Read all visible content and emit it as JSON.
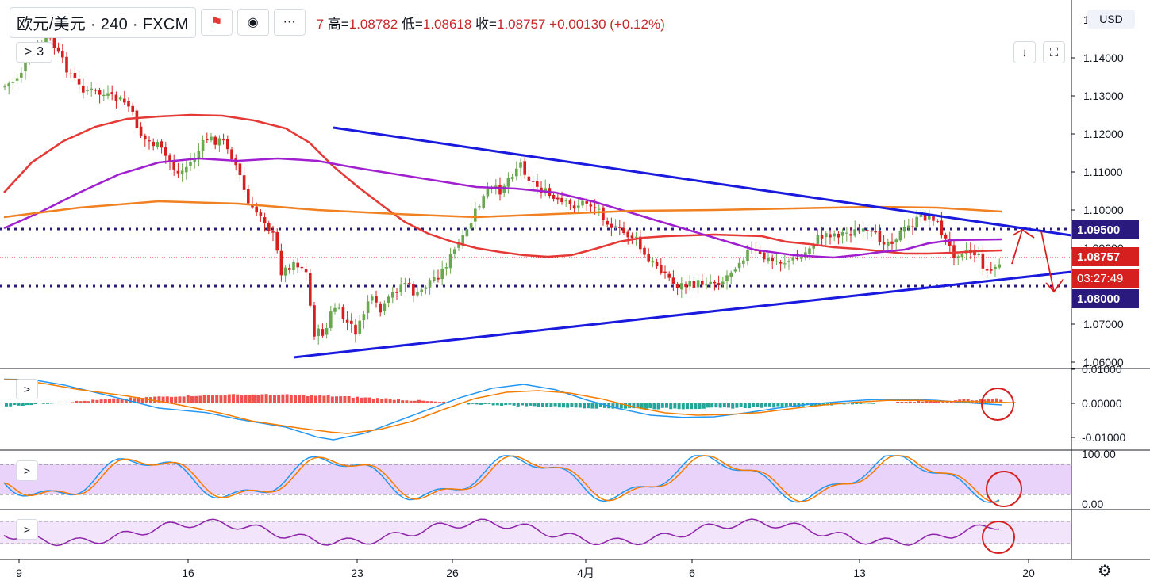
{
  "header": {
    "symbol": "欧元/美元",
    "interval": "240",
    "exchange": "FXCM",
    "ohlc_prefix": "7",
    "high_label": "高=",
    "high": "1.08782",
    "low_label": "低=",
    "low": "1.08618",
    "close_label": "收=",
    "close": "1.08757",
    "change": "+0.00130 (+0.12%)",
    "flag_icon": "flag-icon",
    "eye_icon": "eye-icon",
    "more_icon": "more-icon"
  },
  "indicators_toggle": {
    "arrow": ">",
    "count": "3"
  },
  "pane_toggle": ">",
  "controls": {
    "download_icon": "↓",
    "fullscreen_icon": "⛶"
  },
  "currency": "USD",
  "price_axis": [
    "1.14000",
    "1.13000",
    "1.12000",
    "1.11000",
    "1.10000",
    "1.09000",
    "1.07000",
    "1.06000"
  ],
  "price_axis_top": "1",
  "price_labels": {
    "resistance": "1.09500",
    "current": "1.08757",
    "countdown": "03:27:49",
    "support": "1.08000"
  },
  "macd_axis": [
    "0.01000",
    "0.00000",
    "-0.01000"
  ],
  "stoch_axis": [
    "100.00",
    "0.00"
  ],
  "time_axis": [
    "9",
    "16",
    "23",
    "26",
    "4月",
    "6",
    "13",
    "20"
  ],
  "colors": {
    "up": "#6aa84f",
    "down": "#d62020",
    "trend": "#1a1adf",
    "ma_fast": "#e53935",
    "ma_mid": "#a020d0",
    "ma_slow": "#f08020",
    "level": "#2a1a7e",
    "annot": "#d62020"
  },
  "chart_data": {
    "type": "candlestick",
    "timeframe": "240",
    "ylim": [
      1.058,
      1.151
    ],
    "levels": [
      1.095,
      1.08
    ],
    "current_price": 1.08757
  }
}
